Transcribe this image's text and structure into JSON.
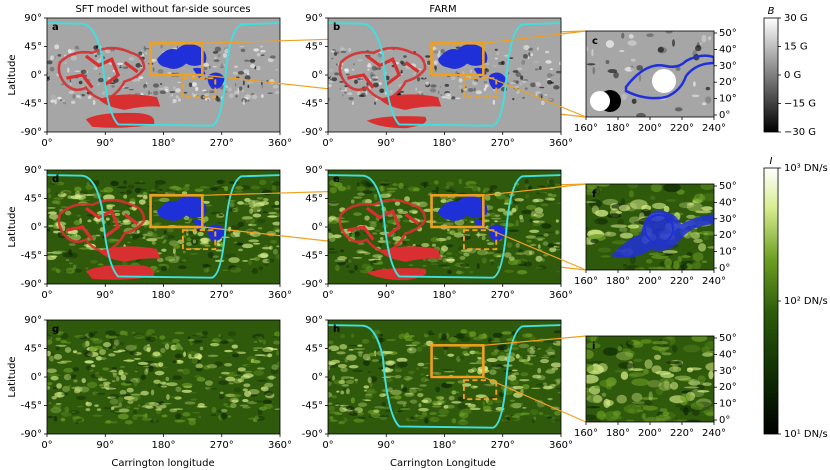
{
  "titles": {
    "left": "SFT model without far-side sources",
    "middle": "FARM"
  },
  "panels": [
    {
      "label": "a"
    },
    {
      "label": "b"
    },
    {
      "label": "c"
    },
    {
      "label": "d"
    },
    {
      "label": "e"
    },
    {
      "label": "f"
    },
    {
      "label": "g"
    },
    {
      "label": "h"
    },
    {
      "label": "i"
    }
  ],
  "latitude_label": "Latitude",
  "x_labels": [
    "Carrington longitude",
    "Carrington Longitude"
  ],
  "lat_ticks": [
    "90°",
    "45°",
    "0°",
    "-45°",
    "-90°"
  ],
  "lon_ticks": [
    "0°",
    "90°",
    "180°",
    "270°",
    "360°"
  ],
  "zoom_lat_ticks": [
    "50°",
    "40°",
    "30°",
    "20°",
    "10°",
    "0°"
  ],
  "zoom_lon_ticks": [
    "160°",
    "180°",
    "200°",
    "220°",
    "240°"
  ],
  "colorbar_b": {
    "symbol": "B",
    "ticks": [
      "30 G",
      "15 G",
      "0 G",
      "−15 G",
      "−30 G"
    ]
  },
  "colorbar_i": {
    "symbol": "I",
    "ticks": [
      "10³ DN/s",
      "10² DN/s",
      "10¹ DN/s"
    ]
  }
}
